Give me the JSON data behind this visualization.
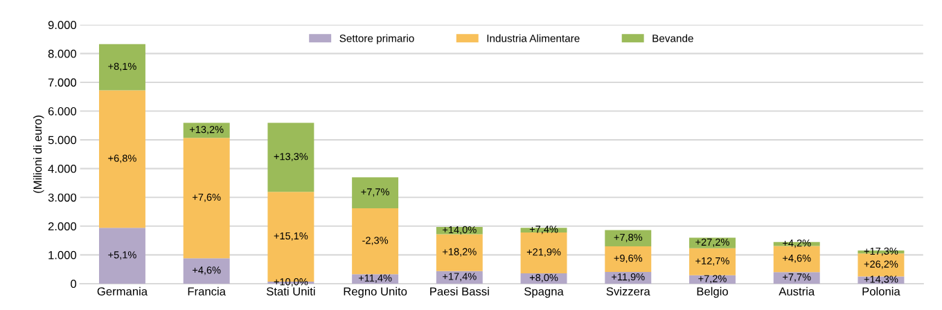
{
  "chart_data": {
    "type": "bar",
    "stacked": true,
    "ylabel": "(Milioni di euro)",
    "categories": [
      "Germania",
      "Francia",
      "Stati Uniti",
      "Regno Unito",
      "Paesi Bassi",
      "Spagna",
      "Svizzera",
      "Belgio",
      "Austria",
      "Polonia"
    ],
    "series": [
      {
        "name": "Settore primario",
        "color": "#b3a8c8",
        "values": [
          1940,
          880,
          70,
          330,
          440,
          360,
          410,
          290,
          400,
          250
        ]
      },
      {
        "name": "Industria Alimentare",
        "color": "#f8c05a",
        "values": [
          4780,
          4190,
          3120,
          2290,
          1280,
          1420,
          890,
          940,
          910,
          800
        ]
      },
      {
        "name": "Bevande",
        "color": "#9bbb59",
        "values": [
          1610,
          520,
          2400,
          1080,
          250,
          160,
          560,
          370,
          140,
          100
        ]
      }
    ],
    "annotations": [
      "+5,1%",
      "+6,8%",
      "+8,1%",
      "+4,6%",
      "+7,6%",
      "+13,2%",
      "+10,0%",
      "+15,1%",
      "+13,3%",
      "+11,4%",
      "-2,3%",
      "+7,7%",
      "+17,4%",
      "+18,2%",
      "+14,0%",
      "+8,0%",
      "+21,9%",
      "+7,4%",
      "+11,9%",
      "+9,6%",
      "+7,8%",
      "+7,2%",
      "+12,7%",
      "+27,2%",
      "+7,7%",
      "+4,6%",
      "+4,2%",
      "+14,3%",
      "+26,2%",
      "+17,3%"
    ],
    "ylim": [
      0,
      9000
    ],
    "yticks": [
      0,
      {
        "value": 1000,
        "label": "1.000"
      },
      {
        "value": 2000,
        "label": "2.000"
      },
      {
        "value": 3000,
        "label": "3.000"
      },
      {
        "value": 4000,
        "label": "4.000"
      },
      {
        "value": 5000,
        "label": "5.000"
      },
      {
        "value": 6000,
        "label": "6.000"
      },
      {
        "value": 7000,
        "label": "7.000"
      },
      {
        "value": 8000,
        "label": "8.000"
      },
      {
        "value": 9000,
        "label": "9.000"
      }
    ],
    "grid": "y",
    "legend": "top"
  }
}
